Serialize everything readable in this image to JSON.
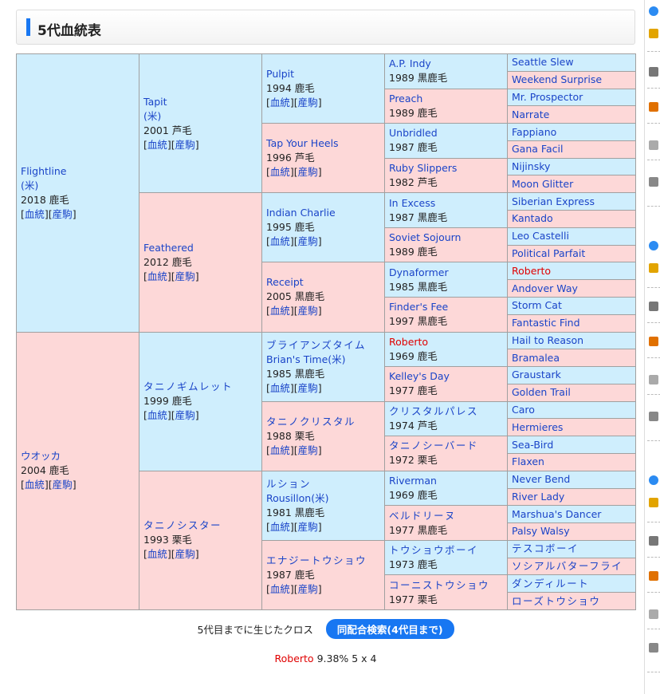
{
  "section_title": "5代血統表",
  "links": {
    "pedigree": "血統",
    "offspring": "産駒"
  },
  "gen1": [
    {
      "name": "Flightline",
      "origin": "(米)",
      "info": "2018 鹿毛"
    },
    {
      "name": "ウオッカ",
      "info": "2004 鹿毛"
    }
  ],
  "gen2": [
    {
      "name": "Tapit",
      "origin": "(米)",
      "info": "2001 芦毛"
    },
    {
      "name": "Feathered",
      "info": "2012 鹿毛"
    },
    {
      "name": "タニノギムレット",
      "info": "1999 鹿毛"
    },
    {
      "name": "タニノシスター",
      "info": "1993 栗毛"
    }
  ],
  "gen3": [
    {
      "name": "Pulpit",
      "info": "1994 鹿毛"
    },
    {
      "name": "Tap Your Heels",
      "info": "1996 芦毛"
    },
    {
      "name": "Indian Charlie",
      "info": "1995 鹿毛"
    },
    {
      "name": "Receipt",
      "info": "2005 黒鹿毛"
    },
    {
      "name": "ブライアンズタイム",
      "name2": "Brian's Time(米)",
      "info": "1985 黒鹿毛"
    },
    {
      "name": "タニノクリスタル",
      "info": "1988 栗毛"
    },
    {
      "name": "ルション",
      "name2": "Rousillon(米)",
      "info": "1981 黒鹿毛"
    },
    {
      "name": "エナジートウショウ",
      "info": "1987 鹿毛"
    }
  ],
  "gen4": [
    {
      "name": "A.P. Indy",
      "info": "1989 黒鹿毛"
    },
    {
      "name": "Preach",
      "info": "1989 鹿毛"
    },
    {
      "name": "Unbridled",
      "info": "1987 鹿毛"
    },
    {
      "name": "Ruby Slippers",
      "info": "1982 芦毛"
    },
    {
      "name": "In Excess",
      "info": "1987 黒鹿毛"
    },
    {
      "name": "Soviet Sojourn",
      "info": "1989 鹿毛"
    },
    {
      "name": "Dynaformer",
      "info": "1985 黒鹿毛"
    },
    {
      "name": "Finder's Fee",
      "info": "1997 黒鹿毛"
    },
    {
      "name": "Roberto",
      "info": "1969 鹿毛"
    },
    {
      "name": "Kelley's Day",
      "info": "1977 鹿毛"
    },
    {
      "name": "クリスタルパレス",
      "info": "1974 芦毛"
    },
    {
      "name": "タニノシーバード",
      "info": "1972 栗毛"
    },
    {
      "name": "Riverman",
      "info": "1969 鹿毛"
    },
    {
      "name": "ベルドリーヌ",
      "info": "1977 黒鹿毛"
    },
    {
      "name": "トウショウボーイ",
      "info": "1973 鹿毛"
    },
    {
      "name": "コーニストウショウ",
      "info": "1977 栗毛"
    }
  ],
  "gen5": [
    "Seattle Slew",
    "Weekend Surprise",
    "Mr. Prospector",
    "Narrate",
    "Fappiano",
    "Gana Facil",
    "Nijinsky",
    "Moon Glitter",
    "Siberian Express",
    "Kantado",
    "Leo Castelli",
    "Political Parfait",
    "Roberto",
    "Andover Way",
    "Storm Cat",
    "Fantastic Find",
    "Hail to Reason",
    "Bramalea",
    "Graustark",
    "Golden Trail",
    "Caro",
    "Hermieres",
    "Sea-Bird",
    "Flaxen",
    "Never Bend",
    "River Lady",
    "Marshua's Dancer",
    "Palsy Walsy",
    "テスコボーイ",
    "ソシアルバターフライ",
    "ダンディルート",
    "ローズトウショウ"
  ],
  "cross": {
    "label": "5代目までに生じたクロス",
    "button": "同配合検索(4代目まで)",
    "result_name": "Roberto",
    "result_value": "9.38%  5 x 4"
  },
  "colors": {
    "sire_bg": "#cfeefd",
    "dam_bg": "#fdd8d8",
    "link": "#1a44c8",
    "cross_red": "#e00000",
    "button": "#1877f2"
  }
}
